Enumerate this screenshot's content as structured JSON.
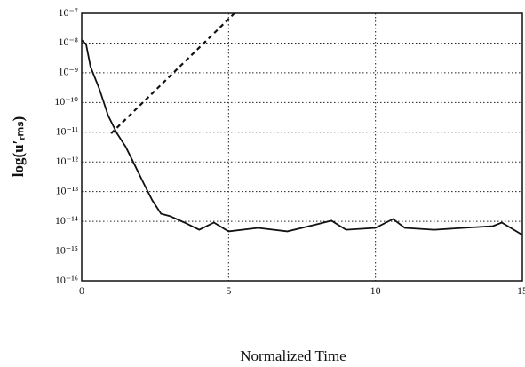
{
  "chart_data": {
    "type": "line",
    "x_label": "Normalized Time",
    "y_label": "log(u′ᵣₘₛ)",
    "log_y": true,
    "grid": true,
    "xlim": [
      0,
      15
    ],
    "xticks": [
      0,
      5,
      10,
      15
    ],
    "ylim": [
      1e-16,
      1e-07
    ],
    "yticks": [
      {
        "value": 1e-07,
        "label": "10⁻⁷"
      },
      {
        "value": 1e-08,
        "label": "10⁻⁸"
      },
      {
        "value": 1e-09,
        "label": "10⁻⁹"
      },
      {
        "value": 1e-10,
        "label": "10⁻¹⁰"
      },
      {
        "value": 1e-11,
        "label": "10⁻¹¹"
      },
      {
        "value": 1e-12,
        "label": "10⁻¹²"
      },
      {
        "value": 1e-13,
        "label": "10⁻¹³"
      },
      {
        "value": 1e-14,
        "label": "10⁻¹⁴"
      },
      {
        "value": 1e-15,
        "label": "10⁻¹⁵"
      },
      {
        "value": 1e-16,
        "label": "10⁻¹⁶"
      }
    ],
    "series": [
      {
        "color": "#111111",
        "dash": false,
        "x": [
          0,
          0.15,
          0.3,
          0.6,
          0.9,
          1.2,
          1.5,
          1.8,
          2.1,
          2.4,
          2.7,
          3.0,
          3.5,
          4.0,
          4.5,
          5.0,
          6,
          7,
          8,
          8.5,
          9,
          10,
          10.6,
          11,
          12,
          13,
          14,
          14.3,
          15
        ],
        "values": [
          1.26e-08,
          8.9e-09,
          1.6e-09,
          2.9e-10,
          3.6e-11,
          9.1e-12,
          3.2e-12,
          8.1e-13,
          2e-13,
          5.1e-14,
          1.8e-14,
          1.5e-14,
          9.1e-15,
          5.2e-15,
          9.1e-15,
          4.6e-15,
          6e-15,
          4.6e-15,
          7.9e-15,
          1.05e-14,
          5.2e-15,
          6e-15,
          1.2e-14,
          6e-15,
          5.2e-15,
          6e-15,
          6.9e-15,
          9.1e-15,
          3.5e-15
        ]
      },
      {
        "color": "#111111",
        "dash": true,
        "x": [
          1.0,
          5.2
        ],
        "values": [
          9.1e-12,
          1e-07
        ]
      }
    ]
  }
}
